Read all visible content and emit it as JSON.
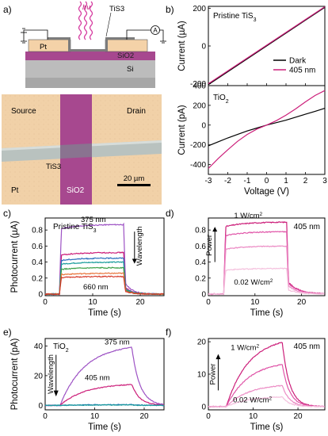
{
  "figure": {
    "panel_labels": [
      "a)",
      "b)",
      "c)",
      "d)",
      "e)",
      "f)"
    ],
    "panel_a": {
      "schematic": {
        "light_label": "hν",
        "tis3_label": "TiS3",
        "pt_label": "Pt",
        "sio2_label": "SiO2",
        "si_label": "Si",
        "ammeter_label": "A"
      },
      "micrograph": {
        "source_label": "Source",
        "drain_label": "Drain",
        "tis3_label": "TiS3",
        "pt_label": "Pt",
        "sio2_label": "SiO2",
        "scale_bar_label": "20 µm"
      }
    }
  },
  "colors": {
    "dark": "#000000",
    "nm405": "#cc1f7a",
    "nm375": "#9d52c4",
    "magenta": "#cc1f7a",
    "blue": "#2e6fbe",
    "teal": "#1a9c9c",
    "green": "#3aa047",
    "orange": "#e8743b",
    "red": "#d63a2a",
    "pink_mid": "#e055a8",
    "pink_light": "#ec8cc5",
    "pink_pale": "#f4c0dd",
    "pt_color": "#f4d2a8",
    "sio2_color": "#a7488f",
    "si_color": "#bcbcbc",
    "tis3_strip": "#b9c2bf"
  },
  "chart_data": [
    {
      "panel": "b-top",
      "type": "line",
      "title": "Pristine TiS3",
      "xlabel": "",
      "ylabel": "Current (µA)",
      "xlim": [
        -3,
        3
      ],
      "ylim": [
        -210,
        210
      ],
      "xticks": [
        -3,
        -2,
        -1,
        0,
        1,
        2,
        3
      ],
      "yticks": [
        -200,
        0,
        200
      ],
      "legend": {
        "placement": "bottom-right",
        "entries": [
          "Dark",
          "405 nm"
        ]
      },
      "series": [
        {
          "name": "Dark",
          "color": "dark",
          "x": [
            -3,
            3
          ],
          "y": [
            -205,
            205
          ]
        },
        {
          "name": "405 nm",
          "color": "nm405",
          "x": [
            -3,
            3
          ],
          "y": [
            -200,
            208
          ]
        }
      ]
    },
    {
      "panel": "b-bottom",
      "type": "line",
      "title": "TiO2",
      "xlabel": "Voltage (V)",
      "ylabel": "Current (pA)",
      "xlim": [
        -3,
        3
      ],
      "ylim": [
        -500,
        400
      ],
      "xticks": [
        -3,
        -2,
        -1,
        0,
        1,
        2,
        3
      ],
      "xticklabels": [
        "-3",
        "-2",
        "-1",
        "0",
        "1",
        "2",
        "3"
      ],
      "yticks": [
        -400,
        -200,
        0,
        200,
        400
      ],
      "series": [
        {
          "name": "Dark",
          "color": "dark",
          "x": [
            -3,
            -2.5,
            -2,
            -1.5,
            -1,
            -0.5,
            0,
            0.5,
            1,
            1.5,
            2,
            2.5,
            3
          ],
          "y": [
            -210,
            -170,
            -130,
            -95,
            -60,
            -30,
            0,
            25,
            50,
            80,
            110,
            140,
            170
          ]
        },
        {
          "name": "405 nm",
          "color": "nm405",
          "x": [
            -3,
            -2.5,
            -2,
            -1.5,
            -1,
            -0.5,
            0,
            0.5,
            1,
            1.5,
            2,
            2.5,
            3
          ],
          "y": [
            -440,
            -340,
            -250,
            -165,
            -95,
            -40,
            0,
            45,
            100,
            165,
            235,
            300,
            350
          ]
        }
      ]
    },
    {
      "panel": "c",
      "type": "line",
      "title": "Pristine TiS3",
      "xlabel": "Time (s)",
      "ylabel": "Photocurrent (µA)",
      "xlim": [
        0,
        25
      ],
      "ylim": [
        -0.02,
        0.95
      ],
      "xticks": [
        0,
        10,
        20
      ],
      "yticks": [
        0,
        0.2,
        0.4,
        0.6,
        0.8
      ],
      "yticklabels": [
        "0",
        "0.2",
        "0.4",
        "0.6",
        "0.8"
      ],
      "annotations": [
        "375 nm",
        "660 nm",
        "Wavelength"
      ],
      "on_time": 3,
      "off_time": 16.5,
      "series": [
        {
          "name": "375 nm",
          "color": "nm375",
          "level": 0.87
        },
        {
          "color": "magenta",
          "level": 0.52
        },
        {
          "color": "blue",
          "level": 0.45
        },
        {
          "color": "teal",
          "level": 0.4
        },
        {
          "color": "green",
          "level": 0.33
        },
        {
          "color": "orange",
          "level": 0.26
        },
        {
          "name": "660 nm",
          "color": "red",
          "level": 0.22
        }
      ]
    },
    {
      "panel": "d",
      "type": "line",
      "title": "405 nm",
      "xlabel": "Time (s)",
      "ylabel": "",
      "xlim": [
        0,
        25
      ],
      "ylim": [
        -0.02,
        0.95
      ],
      "xticks": [
        0,
        10,
        20
      ],
      "yticks": [
        0,
        0.2,
        0.4,
        0.6,
        0.8
      ],
      "yticklabels": [
        "0",
        "0.2",
        "0.4",
        "0.6",
        "0.8"
      ],
      "annotations": [
        "1 W/cm²",
        "0.02 W/cm²",
        "Power"
      ],
      "on_time": 3.3,
      "off_time": 16.8,
      "series": [
        {
          "name": "1 W/cm²",
          "color": "magenta",
          "level": 0.9
        },
        {
          "color": "pink_mid",
          "level": 0.78
        },
        {
          "color": "pink_light",
          "level": 0.6
        },
        {
          "name": "0.02 W/cm²",
          "color": "pink_pale",
          "level": 0.32
        }
      ]
    },
    {
      "panel": "e",
      "type": "line",
      "title": "TiO2",
      "xlabel": "Time (s)",
      "ylabel": "Photocurrent (pA)",
      "xlim": [
        0,
        24
      ],
      "ylim": [
        -3,
        45
      ],
      "xticks": [
        0,
        10,
        20
      ],
      "yticks": [
        0,
        20,
        40
      ],
      "annotations": [
        "375 nm",
        "405 nm",
        "Wavelength"
      ],
      "on_time": 3,
      "off_time": 17.5,
      "series": [
        {
          "name": "375 nm",
          "color": "nm375",
          "peak": 39
        },
        {
          "name": "405 nm",
          "color": "nm405",
          "peak": 14
        },
        {
          "color": "blue",
          "peak": 0.5
        },
        {
          "color": "teal",
          "peak": 0.3
        }
      ]
    },
    {
      "panel": "f",
      "type": "line",
      "title": "405 nm",
      "xlabel": "Time (s)",
      "ylabel": "",
      "xlim": [
        0,
        26
      ],
      "ylim": [
        -1,
        21
      ],
      "xticks": [
        0,
        10,
        20
      ],
      "yticks": [
        0,
        10,
        20
      ],
      "annotations": [
        "1 W/cm²",
        "0.02 W/cm²",
        "Power"
      ],
      "on_time": 4,
      "off_time": 16.5,
      "series": [
        {
          "name": "1 W/cm²",
          "color": "magenta",
          "peak": 19.8
        },
        {
          "color": "pink_mid",
          "peak": 13
        },
        {
          "color": "pink_light",
          "peak": 6.5
        },
        {
          "name": "0.02 W/cm²",
          "color": "pink_pale",
          "peak": 3
        }
      ]
    }
  ]
}
